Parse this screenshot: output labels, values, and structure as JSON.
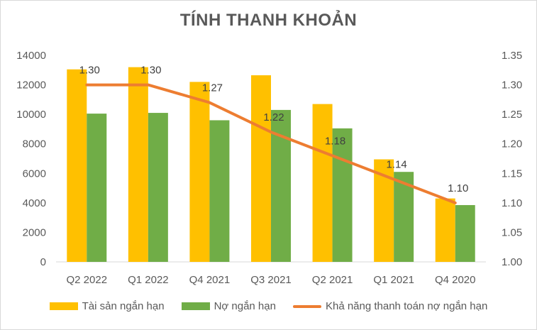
{
  "chart_data": {
    "type": "bar",
    "title": "TÍNH THANH KHOẢN",
    "categories": [
      "Q2 2022",
      "Q1 2022",
      "Q4 2021",
      "Q3 2021",
      "Q2 2021",
      "Q1 2021",
      "Q4 2020"
    ],
    "series": [
      {
        "name": "Tài sản ngắn hạn",
        "type": "bar",
        "axis": "left",
        "color": "#FFC000",
        "values": [
          13050,
          13200,
          12200,
          12650,
          10700,
          6950,
          4300
        ]
      },
      {
        "name": "Nợ ngắn hạn",
        "type": "bar",
        "axis": "left",
        "color": "#70AD47",
        "values": [
          10050,
          10100,
          9600,
          10300,
          9050,
          6100,
          3850
        ]
      },
      {
        "name": "Khả năng thanh toán nợ ngắn hạn",
        "type": "line",
        "axis": "right",
        "color": "#ED7D31",
        "values": [
          1.3,
          1.3,
          1.27,
          1.22,
          1.18,
          1.14,
          1.1
        ],
        "data_labels": [
          "1.30",
          "1.30",
          "1.27",
          "1.22",
          "1.18",
          "1.14",
          "1.10"
        ]
      }
    ],
    "y_left": {
      "ylim": [
        0,
        14000
      ],
      "ticks": [
        "0",
        "2000",
        "4000",
        "6000",
        "8000",
        "10000",
        "12000",
        "14000"
      ]
    },
    "y_right": {
      "ylim": [
        1.0,
        1.35
      ],
      "ticks": [
        "1.00",
        "1.05",
        "1.10",
        "1.15",
        "1.20",
        "1.25",
        "1.30",
        "1.35"
      ]
    },
    "grid": false,
    "legend": "bottom"
  }
}
